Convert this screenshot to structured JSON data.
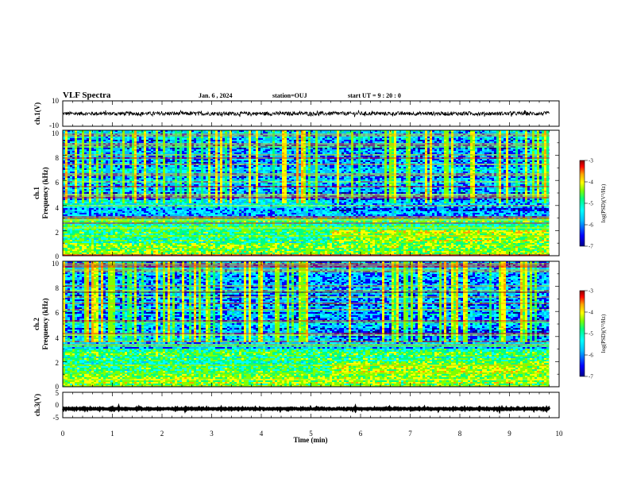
{
  "header": {
    "title": "VLF Spectra",
    "date": "Jan. 6 , 2024",
    "station": "station=OUJ",
    "start": "start UT =  9 : 20 : 0"
  },
  "colors": {
    "spectrogram_palette": [
      "#00008b",
      "#0000ff",
      "#00bfff",
      "#00ffff",
      "#00ff80",
      "#7fff00",
      "#ffff00",
      "#ffa500",
      "#ff0000",
      "#8b0000"
    ],
    "trace": "#000000",
    "axes": "#000000"
  },
  "chart_data": [
    {
      "type": "line",
      "panel": "ch1-waveform",
      "ylabel": "ch.1(V)",
      "ylim": [
        -10,
        10
      ],
      "yticks": [
        10,
        -10
      ],
      "xlim": [
        0,
        10
      ],
      "x": [
        0,
        9.8
      ],
      "y_level": 0,
      "y_noise_amplitude": 1.5
    },
    {
      "type": "heatmap",
      "panel": "ch1-spectrogram",
      "ylabel": "ch.1\nFrequency (kHz)",
      "ylim": [
        0,
        10
      ],
      "yticks": [
        0,
        2,
        4,
        6,
        8,
        10
      ],
      "xlim": [
        0,
        10
      ],
      "data_end_min": 9.8,
      "colorbar": {
        "label": "log(PSD)(V²/Hz)",
        "range": [
          -7,
          -3
        ],
        "ticks": [
          -3,
          -4,
          -5,
          -6,
          -7
        ]
      }
    },
    {
      "type": "heatmap",
      "panel": "ch2-spectrogram",
      "ylabel": "ch.2\nFrequency (kHz)",
      "ylim": [
        0,
        10
      ],
      "yticks": [
        0,
        2,
        4,
        6,
        8,
        10
      ],
      "xlim": [
        0,
        10
      ],
      "data_end_min": 9.8,
      "colorbar": {
        "label": "log(PSD)(V²/Hz)",
        "range": [
          -7,
          -3
        ],
        "ticks": [
          -3,
          -4,
          -5,
          -6,
          -7
        ]
      }
    },
    {
      "type": "line",
      "panel": "ch3-waveform",
      "ylabel": "ch.3(V)",
      "ylim": [
        -5,
        5
      ],
      "yticks": [
        5,
        0,
        -5
      ],
      "xlim": [
        0,
        10
      ],
      "x": [
        0,
        9.8
      ],
      "y_level": -1.5,
      "y_noise_amplitude": 0.2
    }
  ],
  "xaxis": {
    "label": "Time (min)",
    "ticks": [
      0,
      1,
      2,
      3,
      4,
      5,
      6,
      7,
      8,
      9,
      10
    ]
  }
}
